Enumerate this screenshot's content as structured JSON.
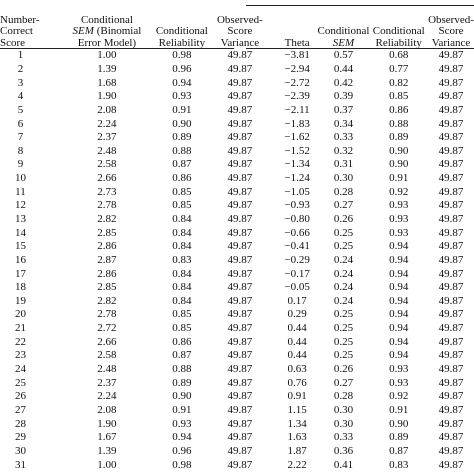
{
  "headers": {
    "col1": [
      "Number-",
      "Correct",
      "Score"
    ],
    "col2": [
      "Conditional",
      "SEM",
      " (Binomial",
      "Error Model)"
    ],
    "col3": [
      "Conditional",
      "Reliability"
    ],
    "col4": [
      "Observed-",
      "Score",
      "Variance"
    ],
    "col5": [
      "Theta"
    ],
    "col6": [
      "Conditional",
      "SEM"
    ],
    "col7": [
      "Conditional",
      "Reliability"
    ],
    "col8": [
      "Observed-",
      "Score",
      "Variance"
    ]
  },
  "rows": [
    [
      "1",
      "1.00",
      "0.98",
      "49.87",
      "−3.81",
      "0.57",
      "0.68",
      "49.87"
    ],
    [
      "2",
      "1.39",
      "0.96",
      "49.87",
      "−2.94",
      "0.44",
      "0.77",
      "49.87"
    ],
    [
      "3",
      "1.68",
      "0.94",
      "49.87",
      "−2.72",
      "0.42",
      "0.82",
      "49.87"
    ],
    [
      "4",
      "1.90",
      "0.93",
      "49.87",
      "−2.39",
      "0.39",
      "0.85",
      "49.87"
    ],
    [
      "5",
      "2.08",
      "0.91",
      "49.87",
      "−2.11",
      "0.37",
      "0.86",
      "49.87"
    ],
    [
      "6",
      "2.24",
      "0.90",
      "49.87",
      "−1.83",
      "0.34",
      "0.88",
      "49.87"
    ],
    [
      "7",
      "2.37",
      "0.89",
      "49.87",
      "−1.62",
      "0.33",
      "0.89",
      "49.87"
    ],
    [
      "8",
      "2.48",
      "0.88",
      "49.87",
      "−1.52",
      "0.32",
      "0.90",
      "49.87"
    ],
    [
      "9",
      "2.58",
      "0.87",
      "49.87",
      "−1.34",
      "0.31",
      "0.90",
      "49.87"
    ],
    [
      "10",
      "2.66",
      "0.86",
      "49.87",
      "−1.24",
      "0.30",
      "0.91",
      "49.87"
    ],
    [
      "11",
      "2.73",
      "0.85",
      "49.87",
      "−1.05",
      "0.28",
      "0.92",
      "49.87"
    ],
    [
      "12",
      "2.78",
      "0.85",
      "49.87",
      "−0.93",
      "0.27",
      "0.93",
      "49.87"
    ],
    [
      "13",
      "2.82",
      "0.84",
      "49.87",
      "−0.80",
      "0.26",
      "0.93",
      "49.87"
    ],
    [
      "14",
      "2.85",
      "0.84",
      "49.87",
      "−0.66",
      "0.25",
      "0.93",
      "49.87"
    ],
    [
      "15",
      "2.86",
      "0.84",
      "49.87",
      "−0.41",
      "0.25",
      "0.94",
      "49.87"
    ],
    [
      "16",
      "2.87",
      "0.83",
      "49.87",
      "−0.29",
      "0.24",
      "0.94",
      "49.87"
    ],
    [
      "17",
      "2.86",
      "0.84",
      "49.87",
      "−0.17",
      "0.24",
      "0.94",
      "49.87"
    ],
    [
      "18",
      "2.85",
      "0.84",
      "49.87",
      "−0.05",
      "0.24",
      "0.94",
      "49.87"
    ],
    [
      "19",
      "2.82",
      "0.84",
      "49.87",
      "0.17",
      "0.24",
      "0.94",
      "49.87"
    ],
    [
      "20",
      "2.78",
      "0.85",
      "49.87",
      "0.29",
      "0.25",
      "0.94",
      "49.87"
    ],
    [
      "21",
      "2.72",
      "0.85",
      "49.87",
      "0.44",
      "0.25",
      "0.94",
      "49.87"
    ],
    [
      "22",
      "2.66",
      "0.86",
      "49.87",
      "0.44",
      "0.25",
      "0.94",
      "49.87"
    ],
    [
      "23",
      "2.58",
      "0.87",
      "49.87",
      "0.44",
      "0.25",
      "0.94",
      "49.87"
    ],
    [
      "24",
      "2.48",
      "0.88",
      "49.87",
      "0.63",
      "0.26",
      "0.93",
      "49.87"
    ],
    [
      "25",
      "2.37",
      "0.89",
      "49.87",
      "0.76",
      "0.27",
      "0.93",
      "49.87"
    ],
    [
      "26",
      "2.24",
      "0.90",
      "49.87",
      "0.91",
      "0.28",
      "0.92",
      "49.87"
    ],
    [
      "27",
      "2.08",
      "0.91",
      "49.87",
      "1.15",
      "0.30",
      "0.91",
      "49.87"
    ],
    [
      "28",
      "1.90",
      "0.93",
      "49.87",
      "1.34",
      "0.30",
      "0.90",
      "49.87"
    ],
    [
      "29",
      "1.67",
      "0.94",
      "49.87",
      "1.63",
      "0.33",
      "0.89",
      "49.87"
    ],
    [
      "30",
      "1.39",
      "0.96",
      "49.87",
      "1.87",
      "0.36",
      "0.87",
      "49.87"
    ],
    [
      "31",
      "1.00",
      "0.98",
      "49.87",
      "2.22",
      "0.41",
      "0.83",
      "49.87"
    ]
  ]
}
